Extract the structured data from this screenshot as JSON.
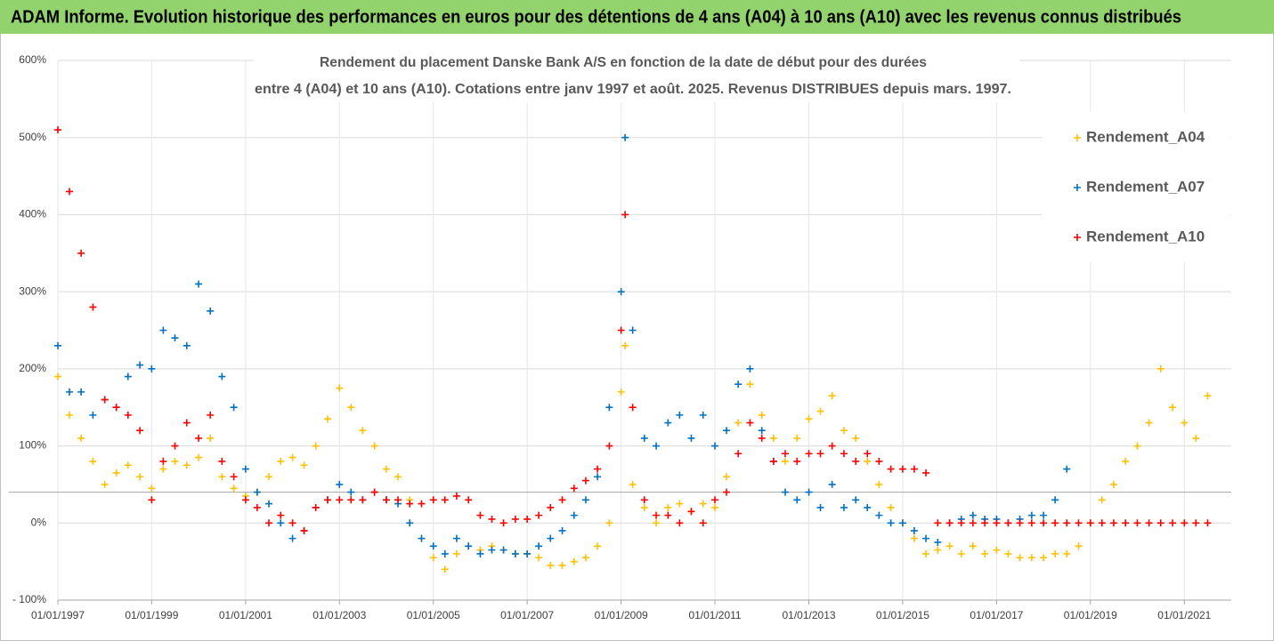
{
  "banner": "ADAM Informe. Evolution historique des performances en euros pour des détentions de 4 ans (A04) à 10 ans (A10) avec les revenus connus distribués",
  "chart_data": {
    "type": "scatter",
    "title": [
      "Rendement du placement Danske Bank A/S en fonction de la date de début pour des durées",
      "entre 4 (A04) et 10 ans (A10). Cotations entre janv 1997 et août. 2025. Revenus DISTRIBUES depuis mars. 1997."
    ],
    "x": [
      "01/01/1997",
      "01/04/1997",
      "01/07/1997",
      "01/10/1997",
      "01/01/1998",
      "01/04/1998",
      "01/07/1998",
      "01/10/1998",
      "01/01/1999",
      "01/04/1999",
      "01/07/1999",
      "01/10/1999",
      "01/01/2000",
      "01/04/2000",
      "01/07/2000",
      "01/10/2000",
      "01/01/2001",
      "01/04/2001",
      "01/07/2001",
      "01/10/2001",
      "01/01/2002",
      "01/04/2002",
      "01/07/2002",
      "01/10/2002",
      "01/01/2003",
      "01/04/2003",
      "01/07/2003",
      "01/10/2003",
      "01/01/2004",
      "01/04/2004",
      "01/07/2004",
      "01/10/2004",
      "01/01/2005",
      "01/04/2005",
      "01/07/2005",
      "01/10/2005",
      "01/01/2006",
      "01/04/2006",
      "01/07/2006",
      "01/10/2006",
      "01/01/2007",
      "01/04/2007",
      "01/07/2007",
      "01/10/2007",
      "01/01/2008",
      "01/04/2008",
      "01/07/2008",
      "01/10/2008",
      "01/01/2009",
      "01/02/2009",
      "01/04/2009",
      "01/07/2009",
      "01/10/2009",
      "01/01/2010",
      "01/04/2010",
      "01/07/2010",
      "01/10/2010",
      "01/01/2011",
      "01/04/2011",
      "01/07/2011",
      "01/10/2011",
      "01/01/2012",
      "01/04/2012",
      "01/07/2012",
      "01/10/2012",
      "01/01/2013",
      "01/04/2013",
      "01/07/2013",
      "01/10/2013",
      "01/01/2014",
      "01/04/2014",
      "01/07/2014",
      "01/10/2014",
      "01/01/2015",
      "01/04/2015",
      "01/07/2015",
      "01/10/2015",
      "01/01/2016",
      "01/04/2016",
      "01/07/2016",
      "01/10/2016",
      "01/01/2017",
      "01/04/2017",
      "01/07/2017",
      "01/10/2017",
      "01/01/2018",
      "01/04/2018",
      "01/07/2018",
      "01/10/2018",
      "01/01/2019",
      "01/04/2019",
      "01/07/2019",
      "01/10/2019",
      "01/01/2020",
      "01/04/2020",
      "01/07/2020",
      "01/10/2020",
      "01/01/2021",
      "01/04/2021",
      "01/07/2021"
    ],
    "series": [
      {
        "name": "Rendement_A04",
        "color": "#ffc000",
        "values": [
          190,
          140,
          110,
          80,
          50,
          65,
          75,
          60,
          45,
          70,
          80,
          75,
          85,
          110,
          60,
          45,
          35,
          40,
          60,
          80,
          85,
          75,
          100,
          135,
          175,
          150,
          120,
          100,
          70,
          60,
          30,
          -20,
          -45,
          -60,
          -40,
          -30,
          -35,
          -30,
          -35,
          -40,
          -40,
          -45,
          -55,
          -55,
          -50,
          -45,
          -30,
          0,
          170,
          230,
          50,
          20,
          0,
          20,
          25,
          15,
          25,
          20,
          60,
          130,
          180,
          140,
          110,
          80,
          110,
          135,
          145,
          165,
          120,
          110,
          80,
          50,
          20,
          0,
          -20,
          -40,
          -35,
          -30,
          -40,
          -30,
          -40,
          -35,
          -40,
          -45,
          -45,
          -45,
          -40,
          -40,
          -30,
          0,
          30,
          50,
          80,
          100,
          130,
          200,
          150,
          130,
          110,
          165
        ]
      },
      {
        "name": "Rendement_A07",
        "color": "#0070c0",
        "values": [
          230,
          170,
          170,
          140,
          160,
          150,
          190,
          205,
          200,
          250,
          240,
          230,
          310,
          275,
          190,
          150,
          70,
          40,
          25,
          0,
          -20,
          -10,
          20,
          30,
          50,
          40,
          30,
          40,
          30,
          25,
          0,
          -20,
          -30,
          -40,
          -20,
          -30,
          -40,
          -35,
          -35,
          -40,
          -40,
          -30,
          -20,
          -10,
          10,
          30,
          60,
          150,
          300,
          500,
          250,
          110,
          100,
          130,
          140,
          110,
          140,
          100,
          120,
          180,
          200,
          120,
          80,
          40,
          30,
          40,
          20,
          50,
          20,
          30,
          20,
          10,
          0,
          0,
          -10,
          -20,
          -25,
          0,
          5,
          10,
          5,
          5,
          0,
          5,
          10,
          10,
          30,
          70,
          null,
          null,
          null,
          null,
          null,
          null,
          null,
          null,
          null,
          null,
          null,
          null
        ]
      },
      {
        "name": "Rendement_A10",
        "color": "#ff0000",
        "values": [
          510,
          430,
          350,
          280,
          160,
          150,
          140,
          120,
          30,
          80,
          100,
          130,
          110,
          140,
          80,
          60,
          30,
          20,
          0,
          10,
          0,
          -10,
          20,
          30,
          30,
          30,
          30,
          40,
          30,
          30,
          25,
          25,
          30,
          30,
          35,
          30,
          10,
          5,
          0,
          5,
          5,
          10,
          20,
          30,
          45,
          55,
          70,
          100,
          250,
          400,
          150,
          30,
          10,
          10,
          0,
          15,
          0,
          30,
          40,
          90,
          130,
          110,
          80,
          90,
          80,
          90,
          90,
          100,
          90,
          80,
          90,
          80,
          70,
          70,
          70,
          65,
          0,
          0,
          0,
          0,
          0,
          0,
          0,
          0,
          0,
          0,
          0,
          0,
          0,
          0,
          0,
          0,
          0,
          0,
          0,
          0,
          0,
          0,
          0,
          0
        ]
      }
    ],
    "xlim": [
      "01/01/1997",
      "01/01/2022"
    ],
    "xticks": [
      "01/01/1997",
      "01/01/1999",
      "01/01/2001",
      "01/01/2003",
      "01/01/2005",
      "01/01/2007",
      "01/01/2009",
      "01/01/2011",
      "01/01/2013",
      "01/01/2015",
      "01/01/2017",
      "01/01/2019",
      "01/01/2021"
    ],
    "ylim": [
      -100,
      600
    ],
    "yticks": [
      {
        "value": -100,
        "label": "- 100%"
      },
      {
        "value": 0,
        "label": "0%"
      },
      {
        "value": 100,
        "label": "100%"
      },
      {
        "value": 200,
        "label": "200%"
      },
      {
        "value": 300,
        "label": "300%"
      },
      {
        "value": 400,
        "label": "400%"
      },
      {
        "value": 500,
        "label": "500%"
      },
      {
        "value": 600,
        "label": "600%"
      }
    ],
    "reference_line": 40,
    "grid": true,
    "legend": "upper right"
  }
}
